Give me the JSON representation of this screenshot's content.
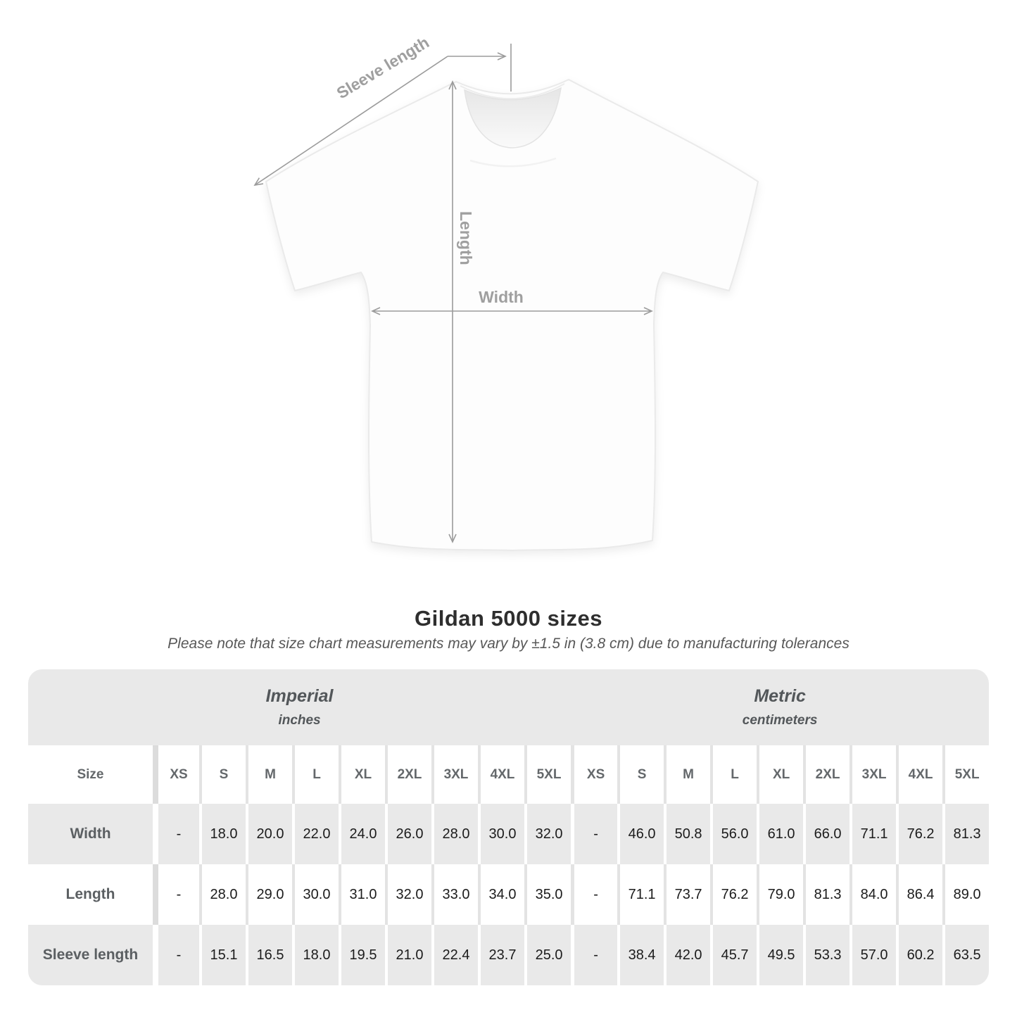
{
  "diagram": {
    "labels": {
      "sleeve_length": "Sleeve length",
      "length": "Length",
      "width": "Width"
    },
    "line_color": "#9b9b9b",
    "label_color": "#9f9f9f"
  },
  "heading": {
    "title": "Gildan 5000 sizes",
    "subtitle": "Please note that size chart measurements may vary by ±1.5 in (3.8 cm) due to manufacturing tolerances"
  },
  "chart_data": {
    "type": "table",
    "title": "Gildan 5000 sizes",
    "subtitle": "Please note that size chart measurements may vary by ±1.5 in (3.8 cm) due to manufacturing tolerances",
    "groups": [
      {
        "label": "Imperial",
        "unit": "inches"
      },
      {
        "label": "Metric",
        "unit": "centimeters"
      }
    ],
    "corner_label": "Size",
    "sizes": [
      "XS",
      "S",
      "M",
      "L",
      "XL",
      "2XL",
      "3XL",
      "4XL",
      "5XL"
    ],
    "rows": [
      {
        "label": "Width",
        "imperial": [
          "-",
          "18.0",
          "20.0",
          "22.0",
          "24.0",
          "26.0",
          "28.0",
          "30.0",
          "32.0"
        ],
        "metric": [
          "-",
          "46.0",
          "50.8",
          "56.0",
          "61.0",
          "66.0",
          "71.1",
          "76.2",
          "81.3"
        ]
      },
      {
        "label": "Length",
        "imperial": [
          "-",
          "28.0",
          "29.0",
          "30.0",
          "31.0",
          "32.0",
          "33.0",
          "34.0",
          "35.0"
        ],
        "metric": [
          "-",
          "71.1",
          "73.7",
          "76.2",
          "79.0",
          "81.3",
          "84.0",
          "86.4",
          "89.0"
        ]
      },
      {
        "label": "Sleeve length",
        "imperial": [
          "-",
          "15.1",
          "16.5",
          "18.0",
          "19.5",
          "21.0",
          "22.4",
          "23.7",
          "25.0"
        ],
        "metric": [
          "-",
          "38.4",
          "42.0",
          "45.7",
          "49.5",
          "53.3",
          "57.0",
          "60.2",
          "63.5"
        ]
      }
    ],
    "layout": {
      "table_bg_band": "#e9e9e9",
      "row_shade_bg": "#e9e9e9",
      "grid": "vertical-separators-only"
    }
  }
}
